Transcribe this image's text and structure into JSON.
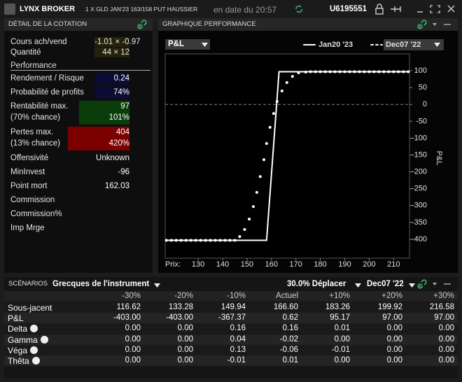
{
  "header": {
    "brand": "LYNX BROKER",
    "instrument": "1 X GLD JAN'23 163/158 PUT HAUSSIER",
    "date": "en date du 20:57",
    "account": "U6195551"
  },
  "quote_panel": {
    "title": "DÉTAIL DE LA COTATION",
    "rows": [
      {
        "label": "Cours ach/vend",
        "value": "-1.01 × -0.97",
        "highlight": "olive"
      },
      {
        "label": "Quantité",
        "value": "44 × 12",
        "highlight": "olive"
      }
    ],
    "section": "Performance",
    "metrics": [
      {
        "label": "Rendement / Risque",
        "value": "0.24",
        "highlight": "blue"
      },
      {
        "label": "Probabilité de profits",
        "value": "74%",
        "highlight": "blue"
      },
      {
        "label": "Rentabilité max.",
        "sublabel": "(70% chance)",
        "value": "97",
        "subvalue": "101%",
        "highlight": "green"
      },
      {
        "label": "Pertes max.",
        "sublabel": "(13% chance)",
        "value": "404",
        "subvalue": "420%",
        "highlight": "red"
      },
      {
        "label": "Offensivité",
        "value": "Unknown"
      },
      {
        "label": "MinInvest",
        "value": "-96"
      },
      {
        "label": "Point mort",
        "value": "162.03"
      },
      {
        "label": "Commission"
      },
      {
        "label": "Commission%"
      },
      {
        "label": "Imp Mrge"
      }
    ]
  },
  "chart_data": {
    "type": "line",
    "title": "GRAPHIQUE PERFORMANCE",
    "selector": "P&L",
    "x_label": "Prix:",
    "y_label": "P&L",
    "xlim": [
      116.5,
      216.5
    ],
    "ylim": [
      -456,
      150
    ],
    "xticks": [
      130,
      140,
      150,
      160,
      170,
      180,
      190,
      200,
      210
    ],
    "yticks": [
      -400,
      -350,
      -300,
      -250,
      -200,
      -150,
      -100,
      -50,
      0,
      50,
      100
    ],
    "zero_line": true,
    "series": [
      {
        "name": "Jan20 '23",
        "color": "#ffffff",
        "style": "solid",
        "x": [
          117,
          158,
          163.1,
          216
        ],
        "values": [
          -403,
          -403,
          97,
          97
        ]
      },
      {
        "name": "Dec07 '22",
        "color": "#ffffff",
        "style": "dotted",
        "x": [
          117,
          119,
          121,
          123,
          125,
          127,
          129,
          131,
          133,
          135,
          137,
          139,
          141,
          143,
          145,
          147,
          149,
          150.9,
          152.6,
          154,
          155.4,
          156.9,
          158,
          159.4,
          160.9,
          162.3,
          164.3,
          166.3,
          168.6,
          171.1,
          174,
          176,
          178,
          180,
          182,
          184,
          186,
          188,
          190,
          192,
          194,
          196,
          198,
          200,
          202,
          204,
          206,
          208,
          210,
          212,
          214,
          216
        ],
        "values": [
          -403,
          -403,
          -403,
          -403,
          -403,
          -403,
          -403,
          -403,
          -403,
          -403,
          -403,
          -403,
          -403,
          -403,
          -403,
          -392,
          -371,
          -340,
          -303,
          -261,
          -214,
          -164,
          -116,
          -68,
          -27,
          9,
          40,
          65,
          83,
          94,
          96,
          97,
          97,
          97,
          97,
          97,
          97,
          97,
          97,
          97,
          97,
          97,
          97,
          97,
          97,
          97,
          97,
          97,
          97,
          97,
          97,
          97
        ]
      }
    ]
  },
  "scenarios": {
    "title": "SCÉNARIOS",
    "view": "Grecques de l'instrument",
    "move": "30.0% Déplacer",
    "date": "Dec07 '22",
    "columns": [
      "-30%",
      "-20%",
      "-10%",
      "Actuel",
      "+10%",
      "+20%",
      "+30%"
    ],
    "rows": [
      {
        "label": "Sous-jacent",
        "info": false,
        "cells": [
          "116.62",
          "133.28",
          "149.94",
          "166.60",
          "183.26",
          "199.92",
          "216.58"
        ]
      },
      {
        "label": "P&L",
        "info": false,
        "cells": [
          "-403.00",
          "-403.00",
          "-367.37",
          "0.62",
          "95.17",
          "97.00",
          "97.00"
        ]
      },
      {
        "label": "Delta",
        "info": true,
        "cells": [
          "0.00",
          "0.00",
          "0.16",
          "0.16",
          "0.01",
          "0.00",
          "0.00"
        ]
      },
      {
        "label": "Gamma",
        "info": true,
        "cells": [
          "0.00",
          "0.00",
          "0.04",
          "-0.02",
          "0.00",
          "0.00",
          "0.00"
        ]
      },
      {
        "label": "Véga",
        "info": true,
        "cells": [
          "0.00",
          "0.00",
          "0.13",
          "-0.06",
          "-0.01",
          "0.00",
          "0.00"
        ]
      },
      {
        "label": "Thêta",
        "info": true,
        "cells": [
          "0.00",
          "0.00",
          "-0.01",
          "0.01",
          "0.00",
          "0.00",
          "0.00"
        ]
      }
    ]
  }
}
